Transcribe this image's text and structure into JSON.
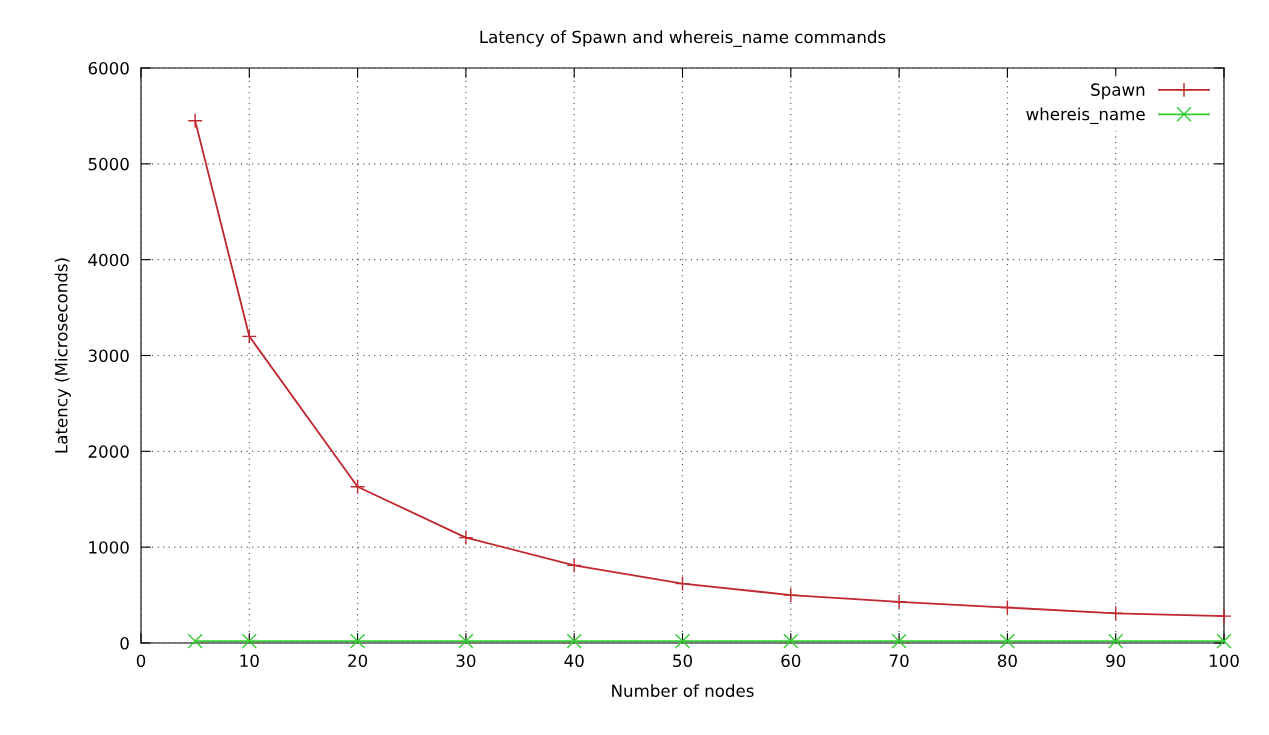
{
  "chart_data": {
    "type": "line",
    "title": "Latency of Spawn and whereis_name commands",
    "xlabel": "Number of nodes",
    "ylabel": "Latency (Microseconds)",
    "x": [
      5,
      10,
      20,
      30,
      40,
      50,
      60,
      70,
      80,
      90,
      100
    ],
    "series": [
      {
        "name": "Spawn",
        "color": "#c0282e",
        "marker": "cross",
        "values": [
          5450,
          3200,
          1630,
          1100,
          810,
          620,
          500,
          430,
          370,
          310,
          280
        ]
      },
      {
        "name": "whereis_name",
        "color": "#33cc33",
        "marker": "x",
        "values": [
          20,
          20,
          20,
          20,
          20,
          20,
          20,
          20,
          20,
          20,
          20
        ]
      }
    ],
    "xlim": [
      0,
      100
    ],
    "ylim": [
      0,
      6000
    ],
    "xticks": [
      0,
      10,
      20,
      30,
      40,
      50,
      60,
      70,
      80,
      90,
      100
    ],
    "yticks": [
      0,
      1000,
      2000,
      3000,
      4000,
      5000,
      6000
    ],
    "grid": true,
    "legend": "top right",
    "line_style": "solid"
  }
}
